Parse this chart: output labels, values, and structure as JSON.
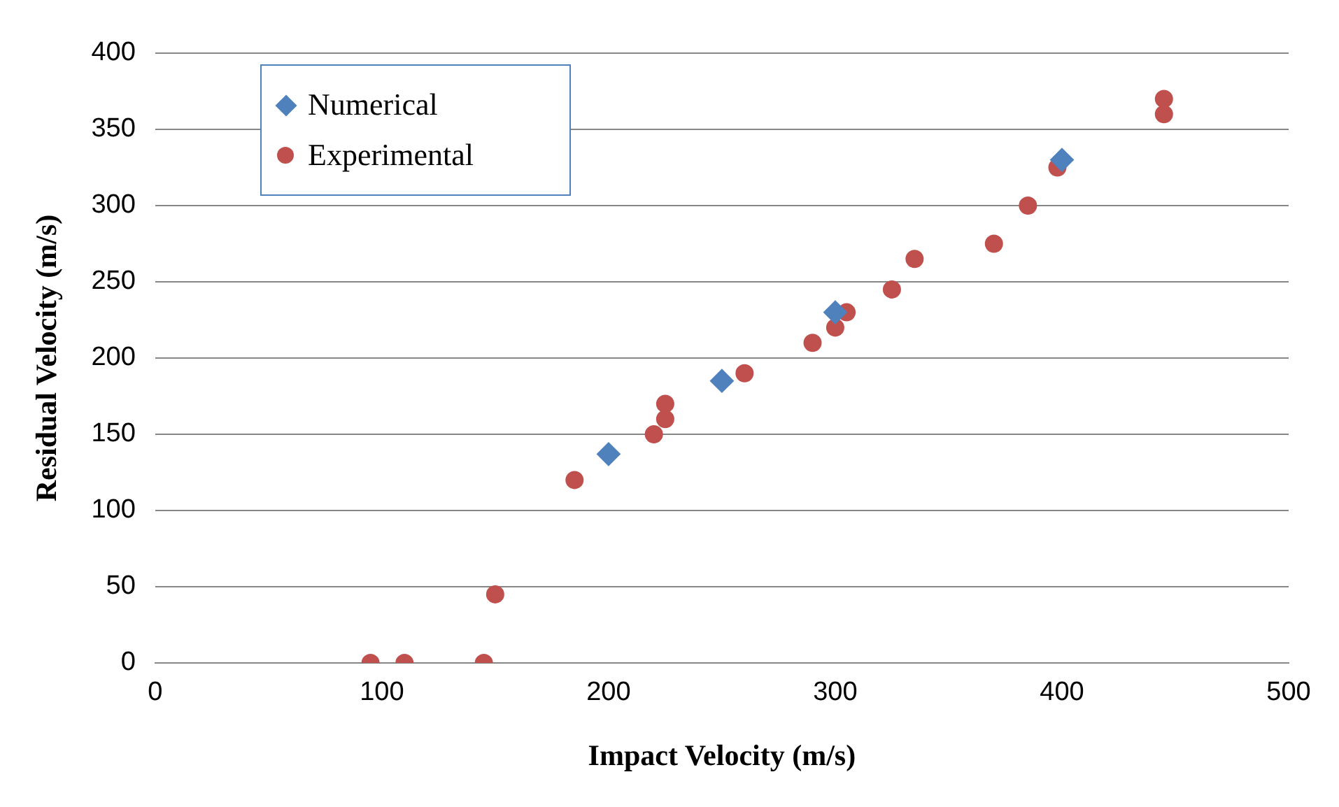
{
  "chart_data": {
    "type": "scatter",
    "xlabel": "Impact Velocity (m/s)",
    "ylabel": "Residual Velocity (m/s)",
    "xlim": [
      0,
      500
    ],
    "xticks": [
      0,
      100,
      200,
      300,
      400,
      500
    ],
    "ylim": [
      0,
      400
    ],
    "yticks": [
      0,
      50,
      100,
      150,
      200,
      250,
      300,
      350,
      400
    ],
    "grid": "y",
    "legend": "top left",
    "series": [
      {
        "name": "Numerical",
        "color": "#4f81bd",
        "marker": "diamond",
        "x": [
          200,
          250,
          300,
          400
        ],
        "values": [
          137,
          185,
          230,
          330
        ]
      },
      {
        "name": "Experimental",
        "color": "#c0504d",
        "marker": "circle",
        "x": [
          95,
          110,
          145,
          150,
          185,
          220,
          225,
          225,
          260,
          290,
          300,
          305,
          325,
          335,
          370,
          385,
          398,
          445,
          445
        ],
        "values": [
          0,
          0,
          0,
          45,
          120,
          150,
          160,
          170,
          190,
          210,
          220,
          230,
          245,
          265,
          275,
          300,
          325,
          360,
          370
        ]
      }
    ]
  }
}
